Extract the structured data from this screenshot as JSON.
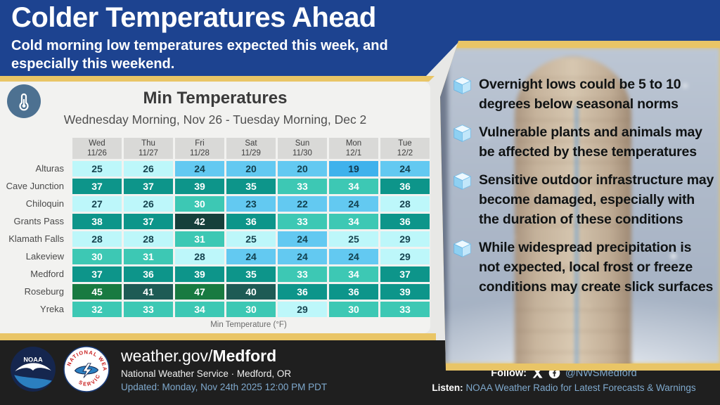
{
  "header": {
    "title": "Colder Temperatures Ahead",
    "subtitle": "Cold morning low temperatures expected this week, and especially this weekend."
  },
  "chart_data": {
    "type": "heatmap",
    "title": "Min Temperatures",
    "subtitle": "Wednesday Morning, Nov 26 - Tuesday Morning, Dec 2",
    "caption": "Min Temperature (°F)",
    "unit": "°F",
    "columns": [
      {
        "day": "Wed",
        "date": "11/26"
      },
      {
        "day": "Thu",
        "date": "11/27"
      },
      {
        "day": "Fri",
        "date": "11/28"
      },
      {
        "day": "Sat",
        "date": "11/29"
      },
      {
        "day": "Sun",
        "date": "11/30"
      },
      {
        "day": "Mon",
        "date": "12/1"
      },
      {
        "day": "Tue",
        "date": "12/2"
      }
    ],
    "rows": [
      {
        "location": "Alturas",
        "values": [
          25,
          26,
          24,
          20,
          20,
          19,
          24
        ]
      },
      {
        "location": "Cave Junction",
        "values": [
          37,
          37,
          39,
          35,
          33,
          34,
          36
        ]
      },
      {
        "location": "Chiloquin",
        "values": [
          27,
          26,
          30,
          23,
          22,
          24,
          28
        ]
      },
      {
        "location": "Grants Pass",
        "values": [
          38,
          37,
          42,
          36,
          33,
          34,
          36
        ]
      },
      {
        "location": "Klamath Falls",
        "values": [
          28,
          28,
          31,
          25,
          24,
          25,
          29
        ]
      },
      {
        "location": "Lakeview",
        "values": [
          30,
          31,
          28,
          24,
          24,
          24,
          29
        ]
      },
      {
        "location": "Medford",
        "values": [
          37,
          36,
          39,
          35,
          33,
          34,
          37
        ]
      },
      {
        "location": "Roseburg",
        "values": [
          45,
          41,
          47,
          40,
          36,
          36,
          39
        ]
      },
      {
        "location": "Yreka",
        "values": [
          32,
          33,
          34,
          30,
          29,
          30,
          33
        ]
      }
    ],
    "color_scale": [
      {
        "min": -99,
        "max": 19,
        "bg": "#3fb2ec",
        "fg": "#10384e"
      },
      {
        "min": 20,
        "max": 24,
        "bg": "#63c9f1",
        "fg": "#12404e"
      },
      {
        "min": 25,
        "max": 29,
        "bg": "#bdf7fa",
        "fg": "#174450"
      },
      {
        "min": 30,
        "max": 34,
        "bg": "#3dc8b4",
        "fg": "#ffffff"
      },
      {
        "min": 35,
        "max": 39,
        "bg": "#0d958a",
        "fg": "#ffffff"
      },
      {
        "min": 40,
        "max": 41,
        "bg": "#1e5b55",
        "fg": "#ffffff"
      },
      {
        "min": 42,
        "max": 44,
        "bg": "#16403b",
        "fg": "#ffffff"
      },
      {
        "min": 45,
        "max": 99,
        "bg": "#187a41",
        "fg": "#ffffff"
      }
    ],
    "legend_position": "bottom",
    "grid": false
  },
  "highlights": {
    "items": [
      "Overnight lows could be 5 to 10 degrees below seasonal norms",
      "Vulnerable plants and animals may be affected by these temperatures",
      "Sensitive outdoor infrastructure may become damaged, especially with the duration of these conditions",
      "While widespread precipitation is not expected, local frost or freeze conditions may create slick surfaces"
    ]
  },
  "footer": {
    "url_prefix": "weather.gov/",
    "url_bold": "Medford",
    "org_line": "National Weather Service · Medford, OR",
    "updated_line": "Updated: Monday, Nov 24th 2025 12:00 PM PDT",
    "follow_label": "Follow:",
    "follow_handle": "@NWSMedford",
    "listen_label": "Listen:",
    "listen_text": "NOAA Weather Radio for Latest Forecasts & Warnings",
    "logos": {
      "noaa_text": "NOAA",
      "nws_arc_top": "NATIONAL WEATHER",
      "nws_arc_bottom": "SERVICE"
    }
  },
  "icons": {
    "panel_badge": "thermometer-icon",
    "bullet": "ice-cube-icon",
    "social": [
      "x-icon",
      "facebook-icon"
    ]
  },
  "colors": {
    "banner_blue": "#1d4390",
    "gold": "#e9c566",
    "panel_bg": "#f2f2f0",
    "header_cell_bg": "#d9d9d7",
    "footer_bg": "#1f1f1f",
    "link_blue": "#7fa9cd",
    "badge_blue": "#4d7191"
  }
}
